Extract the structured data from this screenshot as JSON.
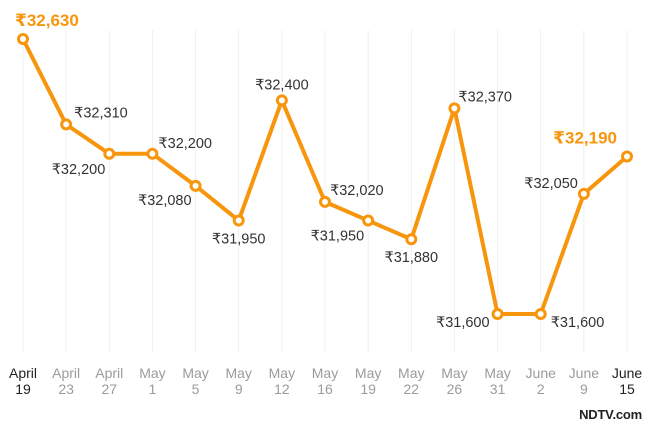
{
  "chart_data": {
    "type": "line",
    "title": "",
    "xlabel": "",
    "ylabel": "",
    "categories": [
      [
        "April",
        "19"
      ],
      [
        "April",
        "23"
      ],
      [
        "April",
        "27"
      ],
      [
        "May",
        "1"
      ],
      [
        "May",
        "5"
      ],
      [
        "May",
        "9"
      ],
      [
        "May",
        "12"
      ],
      [
        "May",
        "16"
      ],
      [
        "May",
        "19"
      ],
      [
        "May",
        "22"
      ],
      [
        "May",
        "26"
      ],
      [
        "May",
        "31"
      ],
      [
        "June",
        "2"
      ],
      [
        "June",
        "9"
      ],
      [
        "June",
        "15"
      ]
    ],
    "series": [
      {
        "values": [
          32630,
          32310,
          32200,
          32200,
          32080,
          31950,
          32400,
          32020,
          31950,
          31880,
          32370,
          31600,
          31600,
          32050,
          32190
        ],
        "labels": [
          "₹32,630",
          "₹32,310",
          "₹32,200",
          "₹32,200",
          "₹32,080",
          "₹31,950",
          "₹32,400",
          "₹32,020",
          "₹31,950",
          "₹31,880",
          "₹32,370",
          "₹31,600",
          "₹31,600",
          "₹32,050",
          "₹32,190"
        ]
      }
    ],
    "highlighted_points": [
      0,
      14
    ],
    "highlighted_ticks": [
      0,
      14
    ],
    "ylim": [
      31430,
      32630
    ],
    "grid": "vertical",
    "legend": "none",
    "colors": {
      "line": "#f7960d",
      "highlight_text": "#f7960d",
      "label_text": "#333333",
      "tick_text": "#9b9b9b",
      "tick_text_highlight": "#222222"
    }
  },
  "source": "NDTV.com"
}
